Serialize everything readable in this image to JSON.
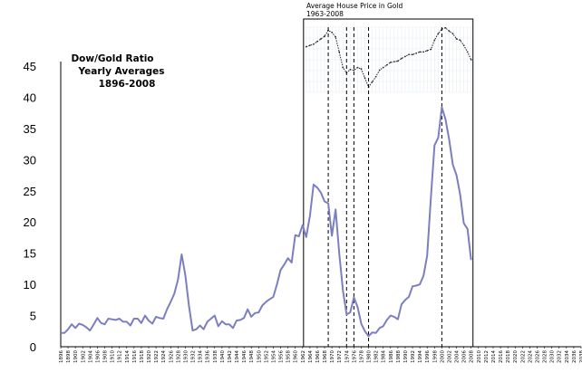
{
  "chart_data": [
    {
      "type": "line",
      "title": "Dow/Gold Ratio",
      "subtitle": "Yearly Averages",
      "period": "1896-2008",
      "xlabel": "",
      "ylabel": "",
      "xlim": [
        1896,
        2038
      ],
      "ylim": [
        0,
        45
      ],
      "y_ticks": [
        0,
        5,
        10,
        15,
        20,
        25,
        30,
        35,
        40,
        45
      ],
      "x_tick_labels": [
        "1896",
        "1898",
        "1900",
        "1902",
        "1904",
        "1906",
        "1908",
        "1910",
        "1912",
        "1914",
        "1916",
        "1918",
        "1920",
        "1922",
        "1924",
        "1926",
        "1928",
        "1930",
        "1932",
        "1934",
        "1936",
        "1938",
        "1940",
        "1942",
        "1944",
        "1946",
        "1948",
        "1950",
        "1952",
        "1954",
        "1956",
        "1958",
        "1960",
        "1962",
        "1964",
        "1966",
        "1968",
        "1970",
        "1972",
        "1974",
        "1976",
        "1978",
        "1980",
        "1982",
        "1984",
        "1986",
        "1988",
        "1990",
        "1992",
        "1994",
        "1996",
        "1998",
        "2000",
        "2002",
        "2004",
        "2006",
        "2008",
        "2010",
        "2012",
        "2014",
        "2016",
        "2018",
        "2020",
        "2022",
        "2024",
        "2026",
        "2028",
        "2030",
        "2032",
        "2034",
        "2036",
        "2038"
      ],
      "grid": false,
      "legend": "none",
      "line_color": "#7b7fc0",
      "vertical_markers": [
        1969,
        1974,
        1976,
        1980,
        2000
      ],
      "series": [
        {
          "x": [
            1896,
            1897,
            1898,
            1899,
            1900,
            1901,
            1902,
            1903,
            1904,
            1905,
            1906,
            1907,
            1908,
            1909,
            1910,
            1911,
            1912,
            1913,
            1914,
            1915,
            1916,
            1917,
            1918,
            1919,
            1920,
            1921,
            1922,
            1923,
            1924,
            1925,
            1926,
            1927,
            1928,
            1929,
            1930,
            1931,
            1932,
            1933,
            1934,
            1935,
            1936,
            1937,
            1938,
            1939,
            1940,
            1941,
            1942,
            1943,
            1944,
            1945,
            1946,
            1947,
            1948,
            1949,
            1950,
            1951,
            1952,
            1953,
            1954,
            1955,
            1956,
            1957,
            1958,
            1959,
            1960,
            1961,
            1962,
            1963,
            1964,
            1965,
            1966,
            1967,
            1968,
            1969,
            1970,
            1971,
            1972,
            1973,
            1974,
            1975,
            1976,
            1977,
            1978,
            1979,
            1980,
            1981,
            1982,
            1983,
            1984,
            1985,
            1986,
            1987,
            1988,
            1989,
            1990,
            1991,
            1992,
            1993,
            1994,
            1995,
            1996,
            1997,
            1998,
            1999,
            2000,
            2001,
            2002,
            2003,
            2004,
            2005,
            2006,
            2007,
            2008
          ],
          "values": [
            2.2,
            2.2,
            2.8,
            3.6,
            3.0,
            3.7,
            3.5,
            3.1,
            2.6,
            3.6,
            4.6,
            3.8,
            3.6,
            4.5,
            4.4,
            4.3,
            4.5,
            4.0,
            4.0,
            3.4,
            4.5,
            4.5,
            3.8,
            5.0,
            4.2,
            3.7,
            4.8,
            4.6,
            4.5,
            6.0,
            7.2,
            8.5,
            10.8,
            14.8,
            11.5,
            6.5,
            2.6,
            2.8,
            3.4,
            2.8,
            4.0,
            4.5,
            5.0,
            3.3,
            4.1,
            3.6,
            3.6,
            3.0,
            4.2,
            4.3,
            4.6,
            6.0,
            4.8,
            5.4,
            5.5,
            6.6,
            7.2,
            7.6,
            8.0,
            10.0,
            12.3,
            13.2,
            14.2,
            13.5,
            17.9,
            17.7,
            19.5,
            17.6,
            21.0,
            26.0,
            25.5,
            24.7,
            23.3,
            23.0,
            17.8,
            22.0,
            15.0,
            9.0,
            5.2,
            5.5,
            7.9,
            6.4,
            3.7,
            2.5,
            1.7,
            2.3,
            2.2,
            3.0,
            3.3,
            4.3,
            5.0,
            4.8,
            4.4,
            6.8,
            7.5,
            8.0,
            9.7,
            9.8,
            10.0,
            11.4,
            14.6,
            23.9,
            32.3,
            33.5,
            38.4,
            36.5,
            33.2,
            29.2,
            27.5,
            24.4,
            19.8,
            18.9,
            13.9
          ]
        }
      ]
    },
    {
      "type": "line",
      "title": "Average House Price in Gold",
      "period": "1963-2008",
      "xlim": [
        1963,
        2008
      ],
      "series": [
        {
          "x": [
            1963,
            1964,
            1965,
            1966,
            1967,
            1968,
            1969,
            1970,
            1971,
            1972,
            1973,
            1974,
            1975,
            1976,
            1977,
            1978,
            1979,
            1980,
            1981,
            1982,
            1983,
            1984,
            1985,
            1986,
            1987,
            1988,
            1989,
            1990,
            1991,
            1992,
            1993,
            1994,
            1995,
            1996,
            1997,
            1998,
            1999,
            2000,
            2001,
            2002,
            2003,
            2004,
            2005,
            2006,
            2007,
            2008
          ],
          "values": [
            0.7,
            0.72,
            0.74,
            0.78,
            0.82,
            0.86,
            0.95,
            0.92,
            0.85,
            0.62,
            0.38,
            0.3,
            0.35,
            0.34,
            0.38,
            0.36,
            0.22,
            0.08,
            0.16,
            0.24,
            0.34,
            0.38,
            0.42,
            0.46,
            0.47,
            0.48,
            0.52,
            0.55,
            0.58,
            0.58,
            0.6,
            0.62,
            0.62,
            0.64,
            0.66,
            0.8,
            0.9,
            0.97,
            0.99,
            0.94,
            0.9,
            0.82,
            0.8,
            0.72,
            0.62,
            0.5
          ]
        }
      ]
    }
  ]
}
